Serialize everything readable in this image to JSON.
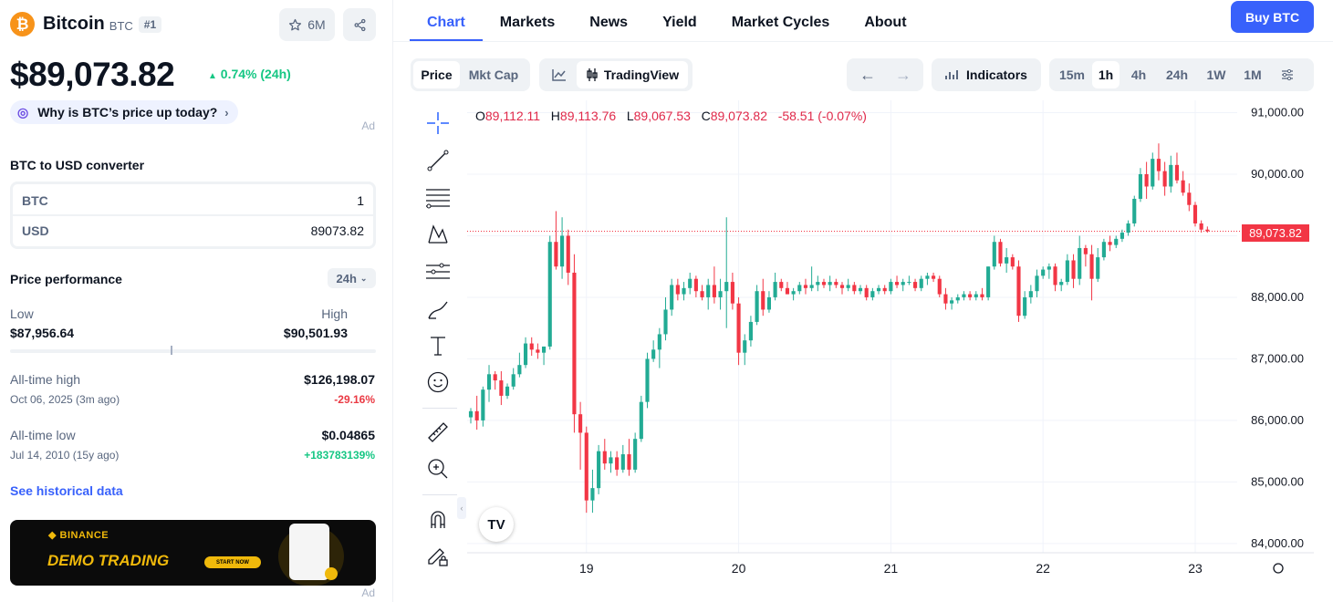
{
  "coin": {
    "name": "Bitcoin",
    "symbol": "BTC",
    "rank": "#1",
    "watchlist_count": "6M",
    "price": "$89,073.82",
    "change": "0.74% (24h)",
    "why_prompt": "Why is BTC’s price up today?",
    "ad_label": "Ad"
  },
  "converter": {
    "title": "BTC to USD converter",
    "from_currency": "BTC",
    "from_value": "1",
    "to_currency": "USD",
    "to_value": "89073.82"
  },
  "performance": {
    "title": "Price performance",
    "range": "24h",
    "low_label": "Low",
    "low_value": "$87,956.64",
    "high_label": "High",
    "high_value": "$90,501.93",
    "current_position": 0.44,
    "ath_label": "All-time high",
    "ath_value": "$126,198.07",
    "ath_date": "Oct 06, 2025 (3m ago)",
    "ath_pct": "-29.16%",
    "atl_label": "All-time low",
    "atl_value": "$0.04865",
    "atl_date": "Jul 14, 2010 (15y ago)",
    "atl_pct": "+183783139%",
    "historical_link": "See historical data"
  },
  "banner": {
    "brand": "BINANCE",
    "headline": "DEMO TRADING",
    "cta": "START NOW",
    "ad_label": "Ad"
  },
  "nav": {
    "tabs": [
      "Chart",
      "Markets",
      "News",
      "Yield",
      "Market Cycles",
      "About"
    ],
    "buy_button": "Buy BTC"
  },
  "toolbar": {
    "price_tab": "Price",
    "mktcap_tab": "Mkt Cap",
    "tradingview": "TradingView",
    "indicators": "Indicators",
    "timeframes": [
      "15m",
      "1h",
      "4h",
      "24h",
      "1W",
      "1M"
    ],
    "active_timeframe": "1h"
  },
  "ohlc": {
    "open_key": "O",
    "open": "89,112.11",
    "high_key": "H",
    "high": "89,113.76",
    "low_key": "L",
    "low": "89,067.53",
    "close_key": "C",
    "close": "89,073.82",
    "change": "-58.51 (-0.07%)"
  },
  "colors": {
    "up": "#22ab94",
    "down": "#f23645",
    "accent": "#3861fb",
    "positive": "#16c784",
    "negative": "#ea3943"
  },
  "chart_data": {
    "type": "candlestick",
    "x_ticks": [
      "19",
      "20",
      "21",
      "22",
      "23"
    ],
    "y_ticks": [
      "84,000.00",
      "85,000.00",
      "86,000.00",
      "87,000.00",
      "88,000.00",
      "89,000.00",
      "90,000.00",
      "91,000.00"
    ],
    "ylim": [
      83850,
      91200
    ],
    "current_price": "89,073.82",
    "series": [
      {
        "name": "BTC/USD",
        "ohlc": [
          [
            86050,
            86200,
            85950,
            86150
          ],
          [
            86150,
            86400,
            85850,
            86000
          ],
          [
            86000,
            86550,
            85900,
            86500
          ],
          [
            86500,
            86900,
            86300,
            86750
          ],
          [
            86750,
            86800,
            86500,
            86650
          ],
          [
            86650,
            86800,
            86250,
            86400
          ],
          [
            86400,
            86600,
            86350,
            86550
          ],
          [
            86550,
            86850,
            86500,
            86750
          ],
          [
            86750,
            87100,
            86700,
            86900
          ],
          [
            86900,
            87350,
            86850,
            87250
          ],
          [
            87250,
            87350,
            87050,
            87150
          ],
          [
            87150,
            87250,
            87000,
            87100
          ],
          [
            87100,
            87200,
            86900,
            87200
          ],
          [
            87200,
            89000,
            87150,
            88900
          ],
          [
            88900,
            89400,
            88450,
            88500
          ],
          [
            88500,
            89300,
            88300,
            89000
          ],
          [
            89000,
            89100,
            88200,
            88400
          ],
          [
            88400,
            88700,
            85800,
            86100
          ],
          [
            86100,
            86300,
            85200,
            85800
          ],
          [
            85800,
            85900,
            84500,
            84700
          ],
          [
            84700,
            85200,
            84500,
            84900
          ],
          [
            84900,
            85600,
            84800,
            85500
          ],
          [
            85500,
            85700,
            85200,
            85300
          ],
          [
            85300,
            85500,
            85150,
            85400
          ],
          [
            85400,
            85500,
            85100,
            85200
          ],
          [
            85200,
            85600,
            85150,
            85450
          ],
          [
            85450,
            85700,
            85100,
            85200
          ],
          [
            85200,
            85800,
            85150,
            85700
          ],
          [
            85700,
            86400,
            85650,
            86300
          ],
          [
            86300,
            87100,
            86200,
            87000
          ],
          [
            87000,
            87300,
            86950,
            87150
          ],
          [
            87150,
            87500,
            86850,
            87400
          ],
          [
            87400,
            88000,
            87300,
            87800
          ],
          [
            87800,
            88300,
            87700,
            88200
          ],
          [
            88200,
            88300,
            87950,
            88050
          ],
          [
            88050,
            88250,
            87950,
            88150
          ],
          [
            88150,
            88400,
            88050,
            88300
          ],
          [
            88300,
            88350,
            88000,
            88100
          ],
          [
            88100,
            88200,
            87950,
            88000
          ],
          [
            88000,
            88300,
            87800,
            88200
          ],
          [
            88200,
            88500,
            87900,
            88000
          ],
          [
            88000,
            88300,
            87800,
            88100
          ],
          [
            88100,
            89300,
            87500,
            88250
          ],
          [
            88250,
            88400,
            87800,
            87900
          ],
          [
            87900,
            88000,
            86900,
            87100
          ],
          [
            87100,
            87400,
            86900,
            87300
          ],
          [
            87300,
            87700,
            87200,
            87600
          ],
          [
            87600,
            88200,
            87550,
            88100
          ],
          [
            88100,
            88300,
            87700,
            87800
          ],
          [
            87800,
            88100,
            87750,
            88000
          ],
          [
            88000,
            88400,
            87950,
            88250
          ],
          [
            88250,
            88300,
            88100,
            88150
          ],
          [
            88150,
            88250,
            88050,
            88050
          ],
          [
            88050,
            88150,
            87950,
            88100
          ],
          [
            88100,
            88250,
            88050,
            88200
          ],
          [
            88200,
            88300,
            88050,
            88150
          ],
          [
            88150,
            88500,
            88100,
            88200
          ],
          [
            88200,
            88350,
            88100,
            88250
          ],
          [
            88250,
            88300,
            88150,
            88200
          ],
          [
            88200,
            88350,
            88100,
            88250
          ],
          [
            88250,
            88300,
            88150,
            88200
          ],
          [
            88200,
            88250,
            88050,
            88150
          ],
          [
            88150,
            88300,
            88100,
            88200
          ],
          [
            88200,
            88250,
            88050,
            88100
          ],
          [
            88100,
            88200,
            88050,
            88150
          ],
          [
            88150,
            88200,
            87950,
            88000
          ],
          [
            88000,
            88150,
            87950,
            88100
          ],
          [
            88100,
            88200,
            88050,
            88150
          ],
          [
            88150,
            88200,
            88050,
            88100
          ],
          [
            88100,
            88300,
            88050,
            88250
          ],
          [
            88250,
            88350,
            88150,
            88200
          ],
          [
            88200,
            88300,
            88100,
            88250
          ],
          [
            88250,
            88350,
            88200,
            88250
          ],
          [
            88250,
            88300,
            88100,
            88150
          ],
          [
            88150,
            88350,
            88100,
            88300
          ],
          [
            88300,
            88400,
            88200,
            88350
          ],
          [
            88350,
            88400,
            88250,
            88300
          ],
          [
            88300,
            88350,
            88000,
            88050
          ],
          [
            88050,
            88150,
            87800,
            87900
          ],
          [
            87900,
            88000,
            87800,
            87950
          ],
          [
            87950,
            88050,
            87900,
            88000
          ],
          [
            88000,
            88100,
            87950,
            88050
          ],
          [
            88050,
            88100,
            87950,
            88000
          ],
          [
            88000,
            88100,
            87950,
            88050
          ],
          [
            88050,
            88150,
            87950,
            88000
          ],
          [
            88000,
            88500,
            87950,
            88500
          ],
          [
            88500,
            89000,
            88450,
            88900
          ],
          [
            88900,
            88950,
            88500,
            88550
          ],
          [
            88550,
            88800,
            88400,
            88650
          ],
          [
            88650,
            88700,
            88450,
            88500
          ],
          [
            88500,
            88600,
            87600,
            87700
          ],
          [
            87700,
            88100,
            87650,
            88000
          ],
          [
            88000,
            88200,
            87900,
            88100
          ],
          [
            88100,
            88450,
            88000,
            88350
          ],
          [
            88350,
            88500,
            88300,
            88450
          ],
          [
            88450,
            88550,
            88300,
            88500
          ],
          [
            88500,
            88550,
            88100,
            88200
          ],
          [
            88200,
            88300,
            88100,
            88250
          ],
          [
            88250,
            88700,
            88200,
            88600
          ],
          [
            88600,
            88700,
            88150,
            88300
          ],
          [
            88300,
            89000,
            88200,
            88800
          ],
          [
            88800,
            88850,
            88500,
            88700
          ],
          [
            88700,
            88850,
            87950,
            88300
          ],
          [
            88300,
            88800,
            88250,
            88650
          ],
          [
            88650,
            88950,
            88600,
            88900
          ],
          [
            88900,
            89000,
            88750,
            88850
          ],
          [
            88850,
            89000,
            88800,
            88950
          ],
          [
            88950,
            89100,
            88900,
            89050
          ],
          [
            89050,
            89250,
            89000,
            89200
          ],
          [
            89200,
            89650,
            89150,
            89600
          ],
          [
            89600,
            90100,
            89550,
            90000
          ],
          [
            90000,
            90200,
            89600,
            89800
          ],
          [
            89800,
            90350,
            89750,
            90250
          ],
          [
            90250,
            90500,
            89900,
            90050
          ],
          [
            90050,
            90200,
            89650,
            89800
          ],
          [
            89800,
            90300,
            89700,
            90150
          ],
          [
            90150,
            90350,
            89850,
            89900
          ],
          [
            89900,
            90050,
            89650,
            89700
          ],
          [
            89700,
            89850,
            89400,
            89500
          ],
          [
            89500,
            89550,
            89150,
            89200
          ],
          [
            89200,
            89250,
            89050,
            89100
          ],
          [
            89100,
            89150,
            89050,
            89074
          ]
        ]
      }
    ]
  }
}
